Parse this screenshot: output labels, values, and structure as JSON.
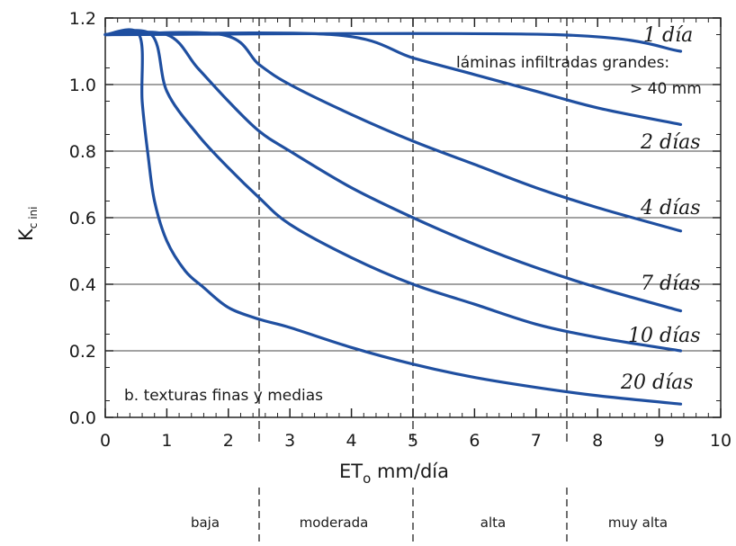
{
  "chart_data": {
    "type": "line",
    "xlabel_main": "ET",
    "xlabel_sub": "o",
    "xlabel_rest": " mm/día",
    "ylabel_main": "K",
    "ylabel_sub": "c ini",
    "xlim": [
      0,
      10
    ],
    "ylim": [
      0,
      1.2
    ],
    "xticks": [
      "0",
      "1",
      "2",
      "3",
      "4",
      "5",
      "6",
      "7",
      "8",
      "9",
      "10"
    ],
    "yticks": [
      "0.0",
      "0.2",
      "0.4",
      "0.6",
      "0.8",
      "1.0",
      "1.2"
    ],
    "grid": true,
    "line_color": "#1f4fa0",
    "series": [
      {
        "name": "1 día",
        "x": [
          0,
          7.3,
          9.35
        ],
        "y": [
          1.15,
          1.15,
          1.1
        ]
      },
      {
        "name": "2 días",
        "x": [
          0,
          3.7,
          5.0,
          6.0,
          7.0,
          8.0,
          9.35
        ],
        "y": [
          1.15,
          1.15,
          1.08,
          1.03,
          0.98,
          0.93,
          0.88
        ]
      },
      {
        "name": "4 días",
        "x": [
          0,
          1.9,
          2.5,
          3.0,
          4.0,
          5.0,
          6.0,
          7.0,
          8.0,
          9.35
        ],
        "y": [
          1.15,
          1.15,
          1.06,
          1.0,
          0.91,
          0.83,
          0.76,
          0.69,
          0.63,
          0.56
        ]
      },
      {
        "name": "7 días",
        "x": [
          0,
          1.0,
          1.5,
          2.0,
          2.5,
          3.0,
          4.0,
          5.0,
          6.0,
          7.0,
          8.0,
          9.35
        ],
        "y": [
          1.15,
          1.15,
          1.05,
          0.95,
          0.86,
          0.8,
          0.69,
          0.6,
          0.52,
          0.45,
          0.39,
          0.32
        ]
      },
      {
        "name": "10 días",
        "x": [
          0,
          0.75,
          1.0,
          1.5,
          2.0,
          2.5,
          3.0,
          4.0,
          5.0,
          6.0,
          7.0,
          8.0,
          9.35
        ],
        "y": [
          1.15,
          1.15,
          0.98,
          0.85,
          0.75,
          0.66,
          0.58,
          0.48,
          0.4,
          0.34,
          0.28,
          0.24,
          0.2
        ]
      },
      {
        "name": "20 días",
        "x": [
          0,
          0.55,
          0.6,
          0.7,
          0.8,
          1.0,
          1.3,
          1.6,
          2.0,
          2.5,
          3.0,
          4.0,
          5.0,
          6.0,
          7.0,
          8.0,
          9.35
        ],
        "y": [
          1.15,
          1.15,
          0.95,
          0.78,
          0.65,
          0.53,
          0.44,
          0.39,
          0.33,
          0.295,
          0.27,
          0.21,
          0.16,
          0.12,
          0.09,
          0.065,
          0.04
        ]
      }
    ],
    "annotations": {
      "infiltrated_line1": "láminas infiltradas grandes:",
      "infiltrated_line2": "> 40 mm",
      "texture_note": "b. texturas finas y medias"
    },
    "categories": [
      {
        "label": "baja",
        "from": 0,
        "to": 2.5
      },
      {
        "label": "moderada",
        "from": 2.5,
        "to": 5
      },
      {
        "label": "alta",
        "from": 5,
        "to": 7.5
      },
      {
        "label": "muy alta",
        "from": 7.5,
        "to": 10
      }
    ],
    "category_boundaries": [
      2.5,
      5,
      7.5
    ]
  }
}
